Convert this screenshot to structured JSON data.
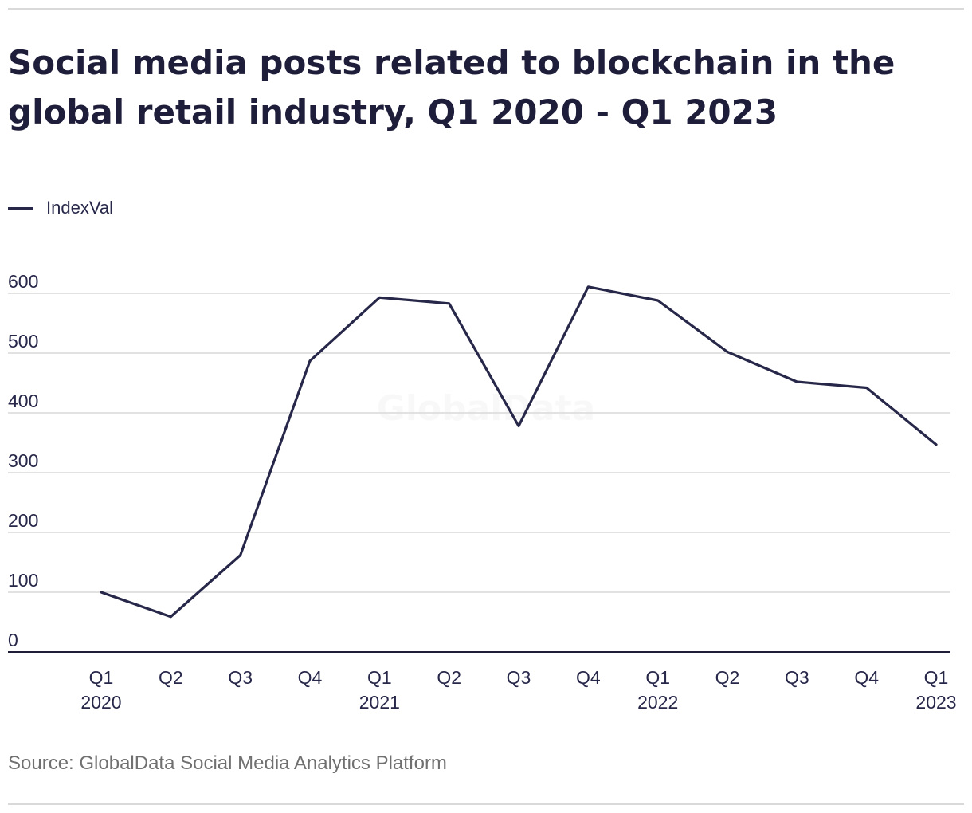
{
  "title": "Social media posts related to blockchain in the global retail industry, Q1 2020 - Q1 2023",
  "source": "Source: GlobalData Social Media Analytics Platform",
  "watermark": "GlobalData",
  "colors": {
    "line": "#27274a",
    "grid": "#d9d9d9",
    "axis": "#1f1f3a"
  },
  "chart_data": {
    "type": "line",
    "title": "Social media posts related to blockchain in the global retail industry, Q1 2020 - Q1 2023",
    "xlabel": "",
    "ylabel": "",
    "ylim": [
      0,
      600
    ],
    "yticks": [
      0,
      100,
      200,
      300,
      400,
      500,
      600
    ],
    "grid": true,
    "legend_position": "top-left",
    "categories": [
      [
        "Q1",
        "2020"
      ],
      [
        "Q2"
      ],
      [
        "Q3"
      ],
      [
        "Q4"
      ],
      [
        "Q1",
        "2021"
      ],
      [
        "Q2"
      ],
      [
        "Q3"
      ],
      [
        "Q4"
      ],
      [
        "Q1",
        "2022"
      ],
      [
        "Q2"
      ],
      [
        "Q3"
      ],
      [
        "Q4"
      ],
      [
        "Q1",
        "2023"
      ]
    ],
    "series": [
      {
        "name": "IndexVal",
        "values": [
          100,
          59,
          162,
          487,
          593,
          583,
          378,
          611,
          588,
          502,
          452,
          442,
          347
        ]
      }
    ]
  }
}
